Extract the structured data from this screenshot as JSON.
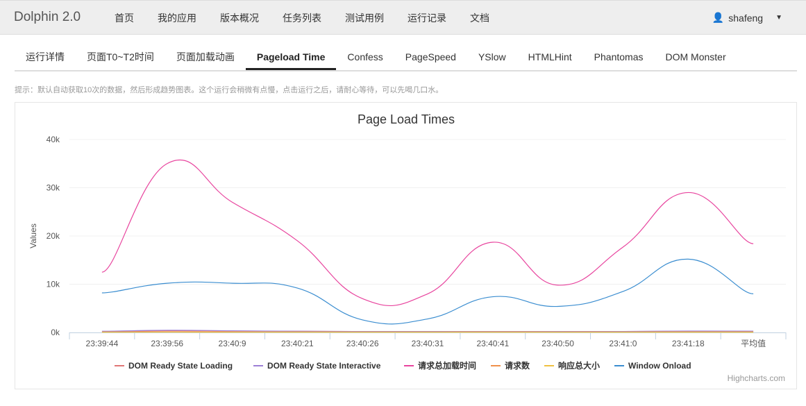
{
  "header": {
    "brand": "Dolphin 2.0",
    "nav": [
      "首页",
      "我的应用",
      "版本概况",
      "任务列表",
      "测试用例",
      "运行记录",
      "文档"
    ],
    "user": "shafeng"
  },
  "tabs": [
    {
      "label": "运行详情"
    },
    {
      "label": "页面T0~T2时间"
    },
    {
      "label": "页面加载动画"
    },
    {
      "label": "Pageload Time",
      "active": true
    },
    {
      "label": "Confess"
    },
    {
      "label": "PageSpeed"
    },
    {
      "label": "YSlow"
    },
    {
      "label": "HTMLHint"
    },
    {
      "label": "Phantomas"
    },
    {
      "label": "DOM Monster"
    }
  ],
  "hint": "提示：默认自动获取10次的数据，然后形成趋势图表。这个运行会稍微有点慢，点击运行之后，请耐心等待，可以先喝几口水。",
  "chart_data": {
    "type": "line",
    "title": "Page Load Times",
    "ylabel": "Values",
    "xlabel": "",
    "ylim": [
      0,
      40000
    ],
    "yticks": [
      "0k",
      "10k",
      "20k",
      "30k",
      "40k"
    ],
    "categories": [
      "23:39:44",
      "23:39:56",
      "23:40:9",
      "23:40:21",
      "23:40:26",
      "23:40:31",
      "23:40:41",
      "23:40:50",
      "23:41:0",
      "23:41:18",
      "平均值"
    ],
    "series": [
      {
        "name": "DOM Ready State Loading",
        "color": "#e07575",
        "values": [
          200,
          350,
          300,
          250,
          200,
          200,
          200,
          200,
          200,
          250,
          230
        ]
      },
      {
        "name": "DOM Ready State Interactive",
        "color": "#9c7fd6",
        "values": [
          250,
          450,
          350,
          250,
          200,
          200,
          200,
          200,
          200,
          300,
          270
        ]
      },
      {
        "name": "请求总加载时间",
        "color": "#e8449e",
        "values": [
          12500,
          35000,
          27000,
          19000,
          7000,
          8000,
          18700,
          9800,
          17700,
          29000,
          18400
        ]
      },
      {
        "name": "请求数",
        "color": "#f0904a",
        "values": [
          100,
          150,
          120,
          110,
          100,
          100,
          110,
          100,
          100,
          120,
          110
        ]
      },
      {
        "name": "响应总大小",
        "color": "#f0c040",
        "values": [
          50,
          60,
          55,
          50,
          50,
          50,
          50,
          50,
          50,
          55,
          52
        ]
      },
      {
        "name": "Window Onload",
        "color": "#3a8dd0",
        "values": [
          8200,
          10200,
          10200,
          9200,
          2600,
          2800,
          7400,
          5400,
          8500,
          15200,
          8000
        ]
      }
    ],
    "legend": "bottom",
    "credits": "Highcharts.com"
  }
}
